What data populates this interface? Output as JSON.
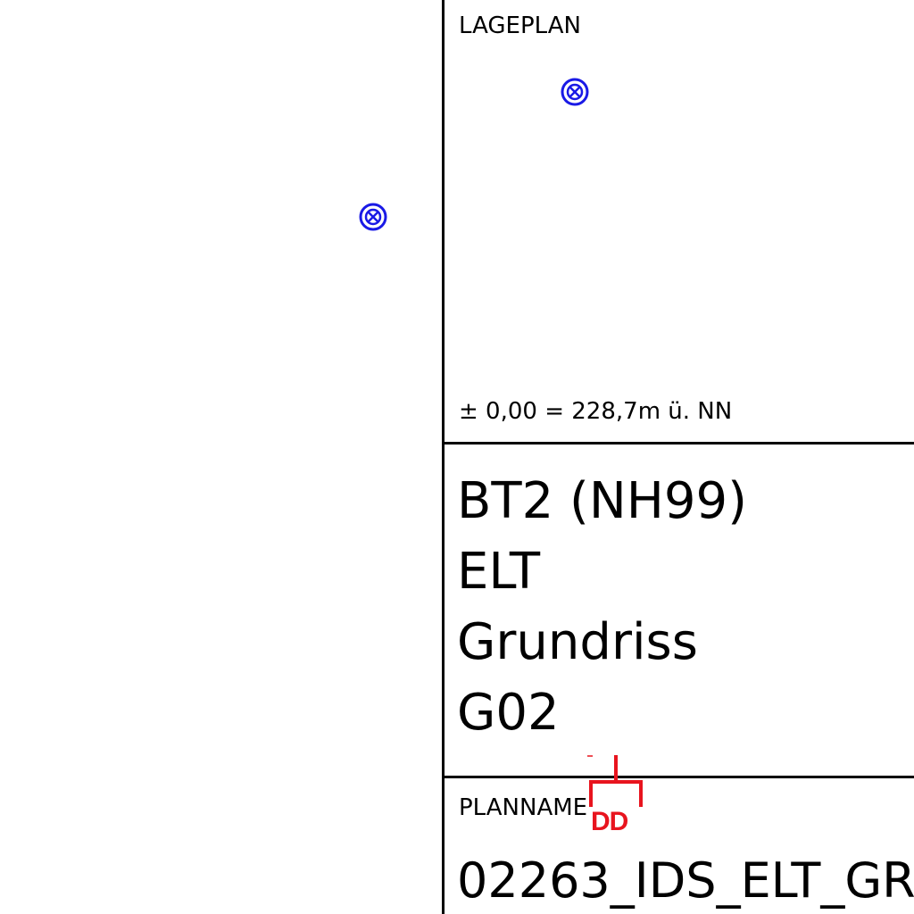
{
  "sheet": {
    "site_plan_label": "LAGEPLAN",
    "elevation_note": "± 0,00 = 228,7m ü. NN",
    "title_lines": [
      "BT2 (NH99)",
      "ELT",
      "Grundriss",
      "G02"
    ],
    "plan_name_label": "PLANNAME",
    "plan_name_value": "02263_IDS_ELT_GR",
    "markup_text": "DD"
  },
  "colors": {
    "symbol": "#1a1ae6",
    "markup": "#e8141e",
    "line": "#000000"
  },
  "icons": [
    "crossed-circle-lamp-icon",
    "crossed-circle-lamp-icon"
  ]
}
